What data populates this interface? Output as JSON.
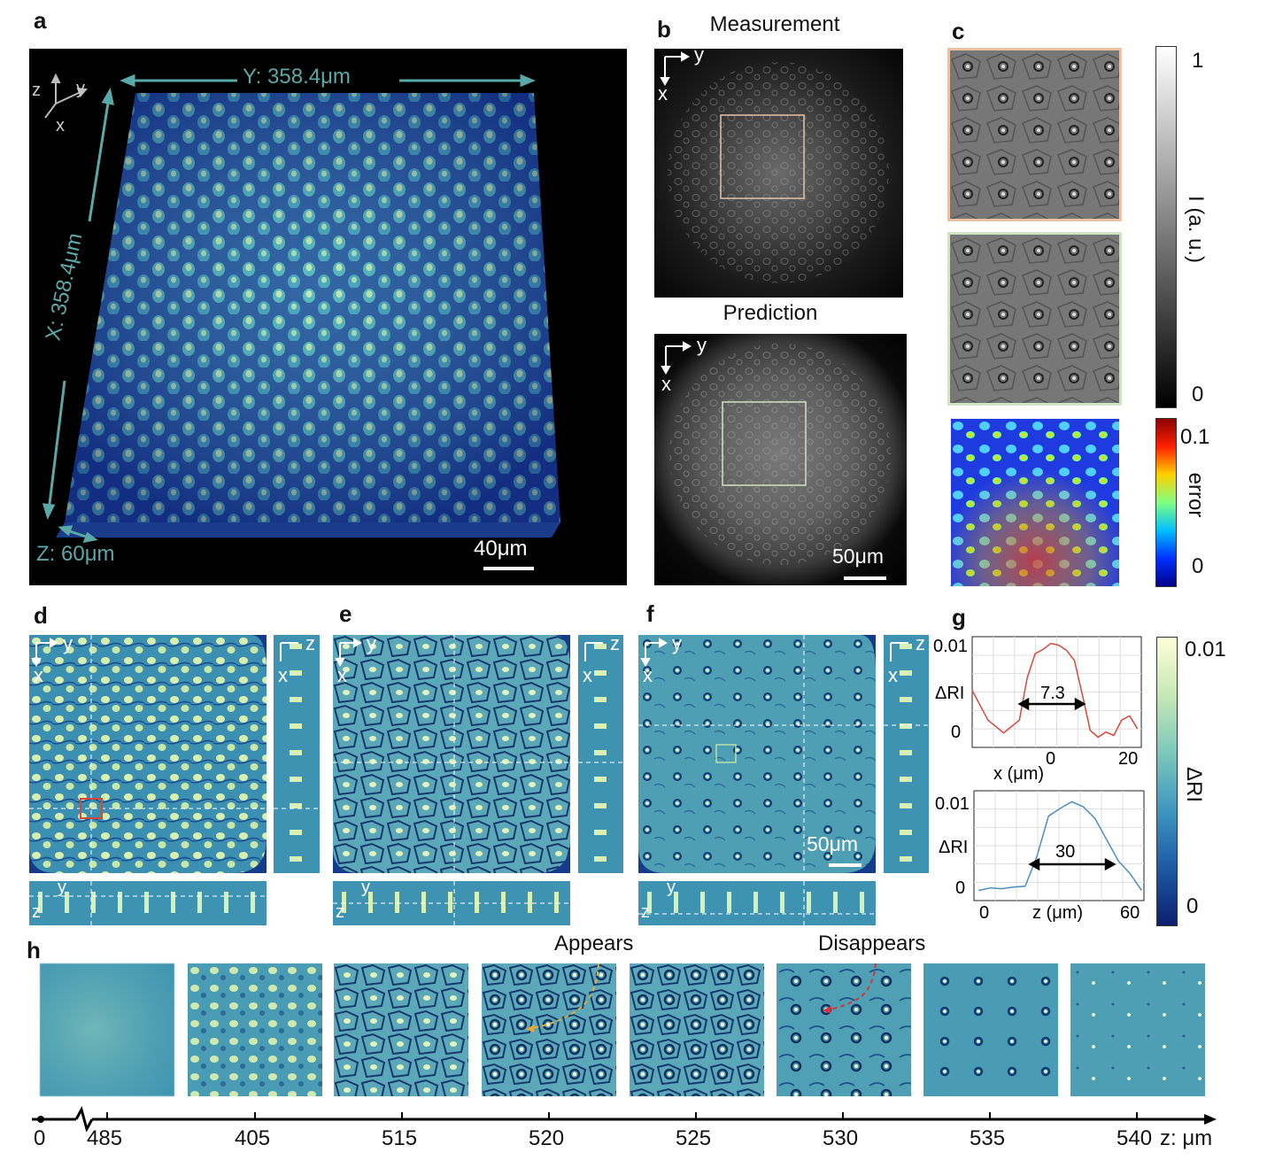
{
  "panels": {
    "a": "a",
    "b": "b",
    "c": "c",
    "d": "d",
    "e": "e",
    "f": "f",
    "g": "g",
    "h": "h"
  },
  "panel_a": {
    "y_dim": "Y: 358.4μm",
    "x_dim": "X: 358.4μm",
    "z_dim": "Z: 60μm",
    "scale": "40μm",
    "axis": {
      "z": "z",
      "y": "y",
      "x": "x"
    }
  },
  "panel_b": {
    "measurement": "Measurement",
    "prediction": "Prediction",
    "scale": "50μm",
    "axis": {
      "y": "y",
      "x": "x"
    }
  },
  "panel_c": {
    "cbar1_top": "1",
    "cbar1_bottom": "0",
    "cbar1_label": "I (a. u.)",
    "cbar2_top": "0.1",
    "cbar2_bottom": "0",
    "cbar2_label": "error"
  },
  "panel_def": {
    "axis": {
      "y": "y",
      "x": "x",
      "z": "z"
    },
    "scale": "50μm"
  },
  "panel_g": {
    "cbar_top": "0.01",
    "cbar_bottom": "0",
    "cbar_label": "ΔRI"
  },
  "chart_data": [
    {
      "type": "line",
      "xlabel": "x (μm)",
      "ylabel": "ΔRI",
      "yticks": [
        "0.01",
        "0"
      ],
      "xticks": [
        "0",
        "20"
      ],
      "annotation": "7.3",
      "series": [
        {
          "x": [
            -20,
            -16,
            -12,
            -8,
            -6,
            -4,
            -2,
            0,
            2,
            4,
            6,
            8,
            10,
            12,
            14,
            16,
            18,
            20,
            22
          ],
          "y": [
            0.0055,
            0.002,
            0.0005,
            0.002,
            0.007,
            0.0098,
            0.0103,
            0.011,
            0.0108,
            0.0102,
            0.009,
            0.005,
            0.0008,
            0.0,
            0.0006,
            0.0002,
            0.002,
            0.0025,
            0.001
          ]
        }
      ],
      "color": "#d9473a"
    },
    {
      "type": "line",
      "xlabel": "z (μm)",
      "ylabel": "ΔRI",
      "yticks": [
        "0.01",
        "0"
      ],
      "xticks": [
        "0",
        "60"
      ],
      "annotation": "30",
      "series": [
        {
          "x": [
            -5,
            0,
            5,
            10,
            15,
            20,
            25,
            30,
            35,
            40,
            45,
            50,
            55,
            60,
            65
          ],
          "y": [
            0.0,
            0.0003,
            0.0002,
            0.0004,
            0.0005,
            0.004,
            0.0088,
            0.0097,
            0.0105,
            0.0099,
            0.0085,
            0.006,
            0.0035,
            0.002,
            0.0
          ]
        }
      ],
      "color": "#4a8cc0"
    }
  ],
  "panel_h": {
    "appears": "Appears",
    "disappears": "Disappears",
    "ticks": [
      "0",
      "485",
      "405",
      "515",
      "520",
      "525",
      "530",
      "535",
      "540"
    ],
    "unit": "z: μm"
  }
}
